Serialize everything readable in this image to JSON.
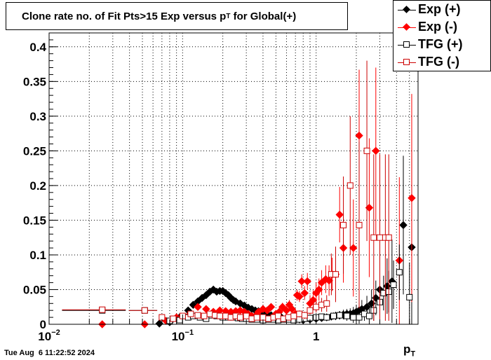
{
  "title_main": "Clone rate no. of Fit Pts>15 Exp versus p",
  "title_sub": "T",
  "title_tail": " for Global(+)",
  "timestamp": "Tue Aug  6 11:22:52 2024",
  "xlabel_main": "p",
  "xlabel_sub": "T",
  "legend": [
    {
      "label": "Exp (+)",
      "color": "#000000",
      "marker": "diamond-filled"
    },
    {
      "label": "Exp (-)",
      "color": "#ff0000",
      "marker": "diamond-filled"
    },
    {
      "label": "TFG (+)",
      "color": "#000000",
      "marker": "square-open"
    },
    {
      "label": "TFG (-)",
      "color": "#cc0000",
      "marker": "square-open"
    }
  ],
  "chart_data": {
    "type": "scatter",
    "xscale": "log",
    "xlim": [
      0.01,
      5.8
    ],
    "ylim": [
      0,
      0.42
    ],
    "grid": true,
    "legend_position": "top-right",
    "yticks": [
      "0",
      "0.05",
      "0.1",
      "0.15",
      "0.2",
      "0.25",
      "0.3",
      "0.35",
      "0.4"
    ],
    "xticks": [
      {
        "base": "10",
        "exp": "−2",
        "value": 0.01
      },
      {
        "base": "10",
        "exp": "−1",
        "value": 0.1
      },
      {
        "base": "1",
        "exp": "",
        "value": 1
      }
    ],
    "series": [
      {
        "name": "Exp (+)",
        "color": "#000000",
        "marker": "diamond-filled",
        "x": [
          0.067,
          0.08,
          0.095,
          0.11,
          0.12,
          0.13,
          0.14,
          0.15,
          0.16,
          0.17,
          0.18,
          0.19,
          0.2,
          0.21,
          0.22,
          0.23,
          0.24,
          0.25,
          0.27,
          0.29,
          0.31,
          0.33,
          0.35,
          0.37,
          0.4,
          0.43,
          0.46,
          0.5,
          0.55,
          0.6,
          0.65,
          0.7,
          0.75,
          0.8,
          0.9,
          1.0,
          1.1,
          1.2,
          1.3,
          1.4,
          1.5,
          1.6,
          1.7,
          1.8,
          1.9,
          2.0,
          2.1,
          2.2,
          2.4,
          2.6,
          2.8,
          3.0,
          3.4,
          3.7,
          4.5,
          5.2
        ],
        "y": [
          0.001,
          0.003,
          0.01,
          0.02,
          0.028,
          0.033,
          0.038,
          0.042,
          0.047,
          0.05,
          0.047,
          0.048,
          0.048,
          0.045,
          0.042,
          0.038,
          0.035,
          0.033,
          0.03,
          0.027,
          0.024,
          0.022,
          0.02,
          0.019,
          0.017,
          0.015,
          0.013,
          0.011,
          0.01,
          0.009,
          0.008,
          0.007,
          0.007,
          0.006,
          0.007,
          0.008,
          0.009,
          0.01,
          0.011,
          0.012,
          0.013,
          0.014,
          0.015,
          0.015,
          0.016,
          0.018,
          0.02,
          0.022,
          0.025,
          0.03,
          0.038,
          0.05,
          0.055,
          0.062,
          0.143,
          0.111
        ],
        "err": [
          0.002,
          0.003,
          0.004,
          0.004,
          0.004,
          0.004,
          0.004,
          0.004,
          0.004,
          0.004,
          0.004,
          0.004,
          0.004,
          0.004,
          0.004,
          0.004,
          0.004,
          0.004,
          0.004,
          0.004,
          0.004,
          0.004,
          0.004,
          0.004,
          0.004,
          0.004,
          0.004,
          0.004,
          0.004,
          0.004,
          0.004,
          0.004,
          0.004,
          0.004,
          0.004,
          0.005,
          0.005,
          0.005,
          0.005,
          0.006,
          0.006,
          0.007,
          0.007,
          0.008,
          0.009,
          0.01,
          0.011,
          0.013,
          0.016,
          0.02,
          0.025,
          0.03,
          0.04,
          0.06,
          0.1,
          0.14
        ]
      },
      {
        "name": "Exp (-)",
        "color": "#ff0000",
        "marker": "diamond-filled",
        "x": [
          0.025,
          0.052,
          0.075,
          0.09,
          0.11,
          0.13,
          0.15,
          0.17,
          0.19,
          0.21,
          0.23,
          0.25,
          0.27,
          0.29,
          0.31,
          0.33,
          0.35,
          0.37,
          0.4,
          0.43,
          0.46,
          0.5,
          0.53,
          0.56,
          0.6,
          0.63,
          0.66,
          0.7,
          0.72,
          0.75,
          0.78,
          0.82,
          0.86,
          0.9,
          0.95,
          1.0,
          1.05,
          1.1,
          1.18,
          1.25,
          1.32,
          1.4,
          1.5,
          1.6,
          1.9,
          2.1,
          2.5,
          2.8,
          4.2,
          5.2
        ],
        "y": [
          0.0,
          0.0,
          0.005,
          0.01,
          0.012,
          0.025,
          0.022,
          0.018,
          0.02,
          0.019,
          0.018,
          0.019,
          0.02,
          0.018,
          0.015,
          0.012,
          0.012,
          0.018,
          0.022,
          0.02,
          0.025,
          0.015,
          0.018,
          0.025,
          0.02,
          0.028,
          0.022,
          0.015,
          0.042,
          0.04,
          0.062,
          0.045,
          0.062,
          0.03,
          0.035,
          0.045,
          0.05,
          0.06,
          0.065,
          0.063,
          0.072,
          0.072,
          0.158,
          0.11,
          0.11,
          0.272,
          0.168,
          0.25,
          0.092,
          0.182
        ],
        "err": [
          0.001,
          0.001,
          0.004,
          0.004,
          0.004,
          0.004,
          0.004,
          0.004,
          0.004,
          0.004,
          0.004,
          0.004,
          0.004,
          0.004,
          0.004,
          0.004,
          0.004,
          0.004,
          0.005,
          0.005,
          0.005,
          0.005,
          0.006,
          0.006,
          0.006,
          0.007,
          0.007,
          0.007,
          0.008,
          0.008,
          0.01,
          0.01,
          0.012,
          0.012,
          0.014,
          0.015,
          0.016,
          0.018,
          0.02,
          0.022,
          0.024,
          0.026,
          0.04,
          0.05,
          0.07,
          0.095,
          0.1,
          0.12,
          0.12,
          0.15
        ]
      },
      {
        "name": "TFG (+)",
        "color": "#000000",
        "marker": "square-open",
        "x": [
          0.025,
          0.052,
          0.08,
          0.095,
          0.11,
          0.12,
          0.135,
          0.15,
          0.165,
          0.18,
          0.2,
          0.22,
          0.24,
          0.26,
          0.28,
          0.3,
          0.33,
          0.36,
          0.4,
          0.44,
          0.48,
          0.52,
          0.57,
          0.62,
          0.68,
          0.75,
          0.82,
          0.9,
          1.0,
          1.1,
          1.2,
          1.35,
          1.5,
          1.7,
          1.9,
          2.1,
          2.3,
          2.5,
          2.7,
          3.0,
          3.2,
          3.5,
          3.8,
          4.2,
          5.0
        ],
        "y": [
          0.02,
          0.02,
          0.005,
          0.006,
          0.01,
          0.012,
          0.01,
          0.008,
          0.013,
          0.012,
          0.01,
          0.01,
          0.01,
          0.009,
          0.008,
          0.008,
          0.007,
          0.007,
          0.006,
          0.007,
          0.007,
          0.006,
          0.007,
          0.007,
          0.006,
          0.007,
          0.008,
          0.009,
          0.01,
          0.011,
          0.01,
          0.012,
          0.013,
          0.012,
          0.01,
          0.01,
          0.015,
          0.012,
          0.02,
          0.032,
          0.045,
          0.047,
          0.057,
          0.075,
          0.039
        ],
        "err": [
          0.002,
          0.002,
          0.003,
          0.003,
          0.003,
          0.003,
          0.003,
          0.003,
          0.003,
          0.003,
          0.003,
          0.003,
          0.003,
          0.003,
          0.003,
          0.003,
          0.003,
          0.003,
          0.003,
          0.003,
          0.003,
          0.003,
          0.003,
          0.003,
          0.003,
          0.003,
          0.003,
          0.004,
          0.004,
          0.004,
          0.005,
          0.005,
          0.006,
          0.007,
          0.008,
          0.009,
          0.01,
          0.012,
          0.015,
          0.02,
          0.025,
          0.03,
          0.035,
          0.04,
          0.05
        ],
        "xerr": [
          0.0125,
          0.0125,
          0,
          0,
          0,
          0,
          0,
          0,
          0,
          0,
          0,
          0,
          0,
          0,
          0,
          0,
          0,
          0,
          0,
          0,
          0,
          0,
          0,
          0,
          0,
          0,
          0,
          0,
          0,
          0,
          0,
          0,
          0,
          0,
          0,
          0,
          0,
          0,
          0,
          0,
          0,
          0,
          0,
          0,
          0
        ]
      },
      {
        "name": "TFG (-)",
        "color": "#cc0000",
        "marker": "square-open",
        "x": [
          0.025,
          0.052,
          0.07,
          0.085,
          0.1,
          0.115,
          0.13,
          0.145,
          0.16,
          0.175,
          0.19,
          0.21,
          0.23,
          0.25,
          0.27,
          0.3,
          0.33,
          0.36,
          0.4,
          0.44,
          0.48,
          0.52,
          0.57,
          0.62,
          0.68,
          0.75,
          0.82,
          0.9,
          1.0,
          1.1,
          1.2,
          1.3,
          1.4,
          1.6,
          1.8,
          2.1,
          2.4,
          2.7,
          3.0,
          3.3,
          3.5
        ],
        "y": [
          0.021,
          0.02,
          0.01,
          0.008,
          0.012,
          0.015,
          0.013,
          0.012,
          0.015,
          0.013,
          0.012,
          0.012,
          0.01,
          0.012,
          0.01,
          0.012,
          0.008,
          0.01,
          0.01,
          0.008,
          0.01,
          0.012,
          0.008,
          0.01,
          0.012,
          0.015,
          0.013,
          0.02,
          0.025,
          0.028,
          0.03,
          0.072,
          0.072,
          0.143,
          0.2,
          0.143,
          0.25,
          0.125,
          0.125,
          0.125,
          0.125
        ],
        "err": [
          0.002,
          0.002,
          0.003,
          0.003,
          0.003,
          0.003,
          0.003,
          0.003,
          0.003,
          0.003,
          0.003,
          0.003,
          0.003,
          0.003,
          0.003,
          0.003,
          0.003,
          0.003,
          0.003,
          0.003,
          0.003,
          0.003,
          0.003,
          0.004,
          0.004,
          0.005,
          0.005,
          0.006,
          0.008,
          0.01,
          0.012,
          0.03,
          0.04,
          0.07,
          0.1,
          0.12,
          0.13,
          0.12,
          0.12,
          0.12,
          0.12
        ],
        "xerr": [
          0.0125,
          0.0125,
          0,
          0,
          0,
          0,
          0,
          0,
          0,
          0,
          0,
          0,
          0,
          0,
          0,
          0,
          0,
          0,
          0,
          0,
          0,
          0,
          0,
          0,
          0,
          0,
          0,
          0,
          0,
          0,
          0,
          0,
          0,
          0,
          0,
          0,
          0,
          0,
          0,
          0,
          0
        ]
      }
    ]
  }
}
